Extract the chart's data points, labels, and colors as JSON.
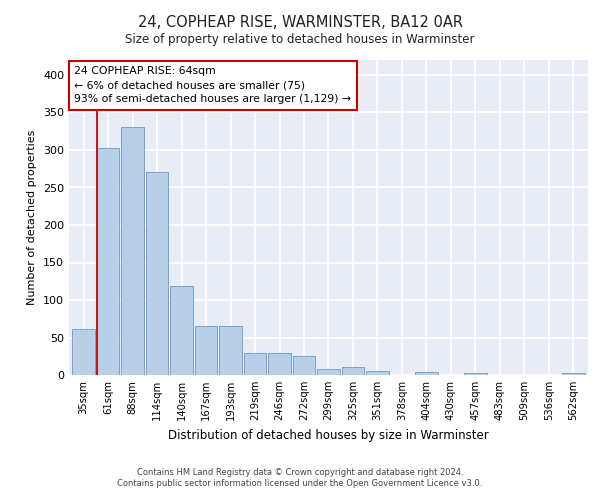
{
  "title": "24, COPHEAP RISE, WARMINSTER, BA12 0AR",
  "subtitle": "Size of property relative to detached houses in Warminster",
  "xlabel": "Distribution of detached houses by size in Warminster",
  "ylabel": "Number of detached properties",
  "categories": [
    "35sqm",
    "61sqm",
    "88sqm",
    "114sqm",
    "140sqm",
    "167sqm",
    "193sqm",
    "219sqm",
    "246sqm",
    "272sqm",
    "299sqm",
    "325sqm",
    "351sqm",
    "378sqm",
    "404sqm",
    "430sqm",
    "457sqm",
    "483sqm",
    "509sqm",
    "536sqm",
    "562sqm"
  ],
  "values": [
    62,
    302,
    330,
    270,
    119,
    65,
    65,
    30,
    30,
    25,
    8,
    11,
    5,
    0,
    4,
    0,
    3,
    0,
    0,
    0,
    3
  ],
  "bar_color": "#b8cfe8",
  "bar_edge_color": "#6699cc",
  "bg_color": "#e8edf5",
  "grid_color": "#ffffff",
  "property_line_x": 0.58,
  "annotation_text_line1": "24 COPHEAP RISE: 64sqm",
  "annotation_text_line2": "← 6% of detached houses are smaller (75)",
  "annotation_text_line3": "93% of semi-detached houses are larger (1,129) →",
  "annotation_box_color": "#cc0000",
  "ylim": [
    0,
    420
  ],
  "yticks": [
    0,
    50,
    100,
    150,
    200,
    250,
    300,
    350,
    400
  ],
  "footer_line1": "Contains HM Land Registry data © Crown copyright and database right 2024.",
  "footer_line2": "Contains public sector information licensed under the Open Government Licence v3.0."
}
